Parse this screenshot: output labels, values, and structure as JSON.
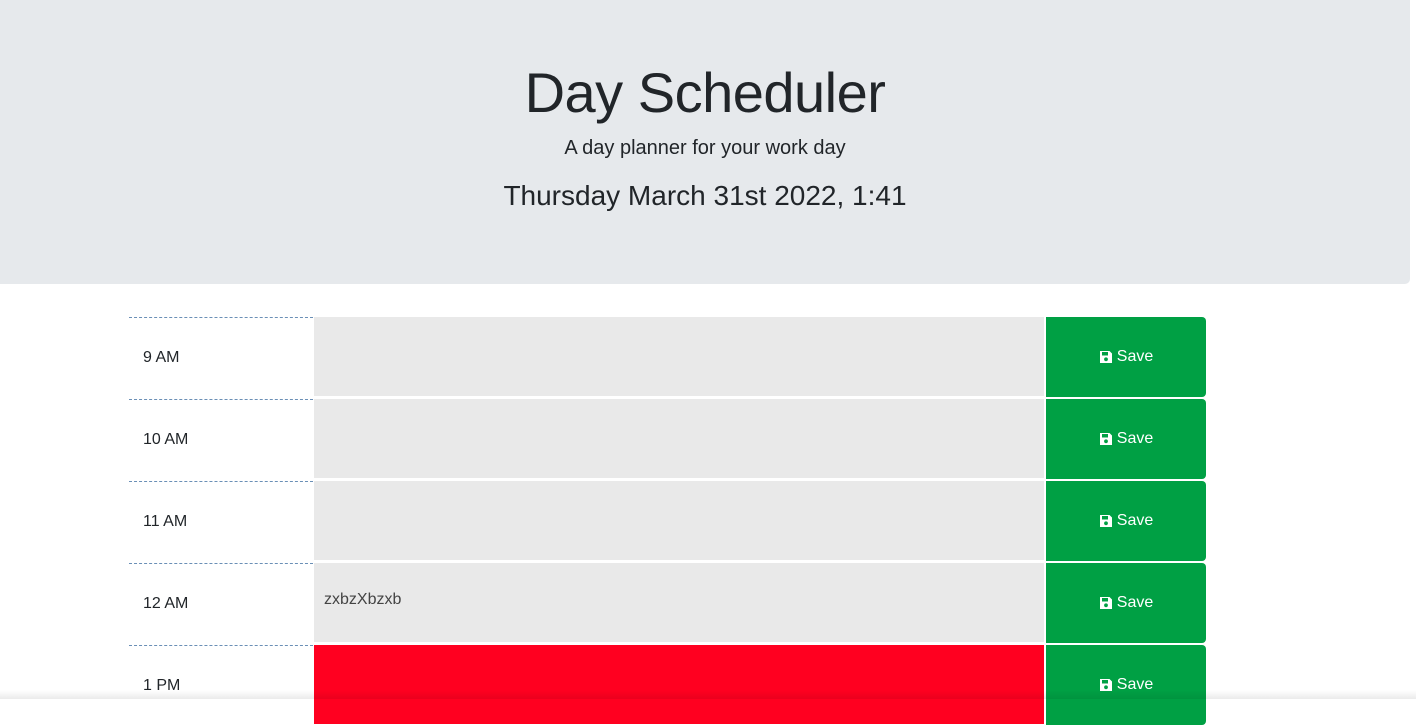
{
  "header": {
    "title": "Day Scheduler",
    "subtitle": "A day planner for your work day",
    "current_day": "Thursday March 31st 2022, 1:41"
  },
  "colors": {
    "past": "#e9e9e9",
    "present": "#ff0020",
    "save_button": "#00a044",
    "jumbotron": "#e6e9ec"
  },
  "time_blocks": [
    {
      "hour": "9 AM",
      "text": "",
      "state": "past",
      "save_label": "Save",
      "icon": "save-icon"
    },
    {
      "hour": "10 AM",
      "text": "",
      "state": "past",
      "save_label": "Save",
      "icon": "save-icon"
    },
    {
      "hour": "11 AM",
      "text": "",
      "state": "past",
      "save_label": "Save",
      "icon": "save-icon"
    },
    {
      "hour": "12 AM",
      "text": "zxbzXbzxb",
      "state": "past",
      "save_label": "Save",
      "icon": "save-icon"
    },
    {
      "hour": "1 PM",
      "text": "",
      "state": "present",
      "save_label": "Save",
      "icon": "save-icon"
    }
  ]
}
